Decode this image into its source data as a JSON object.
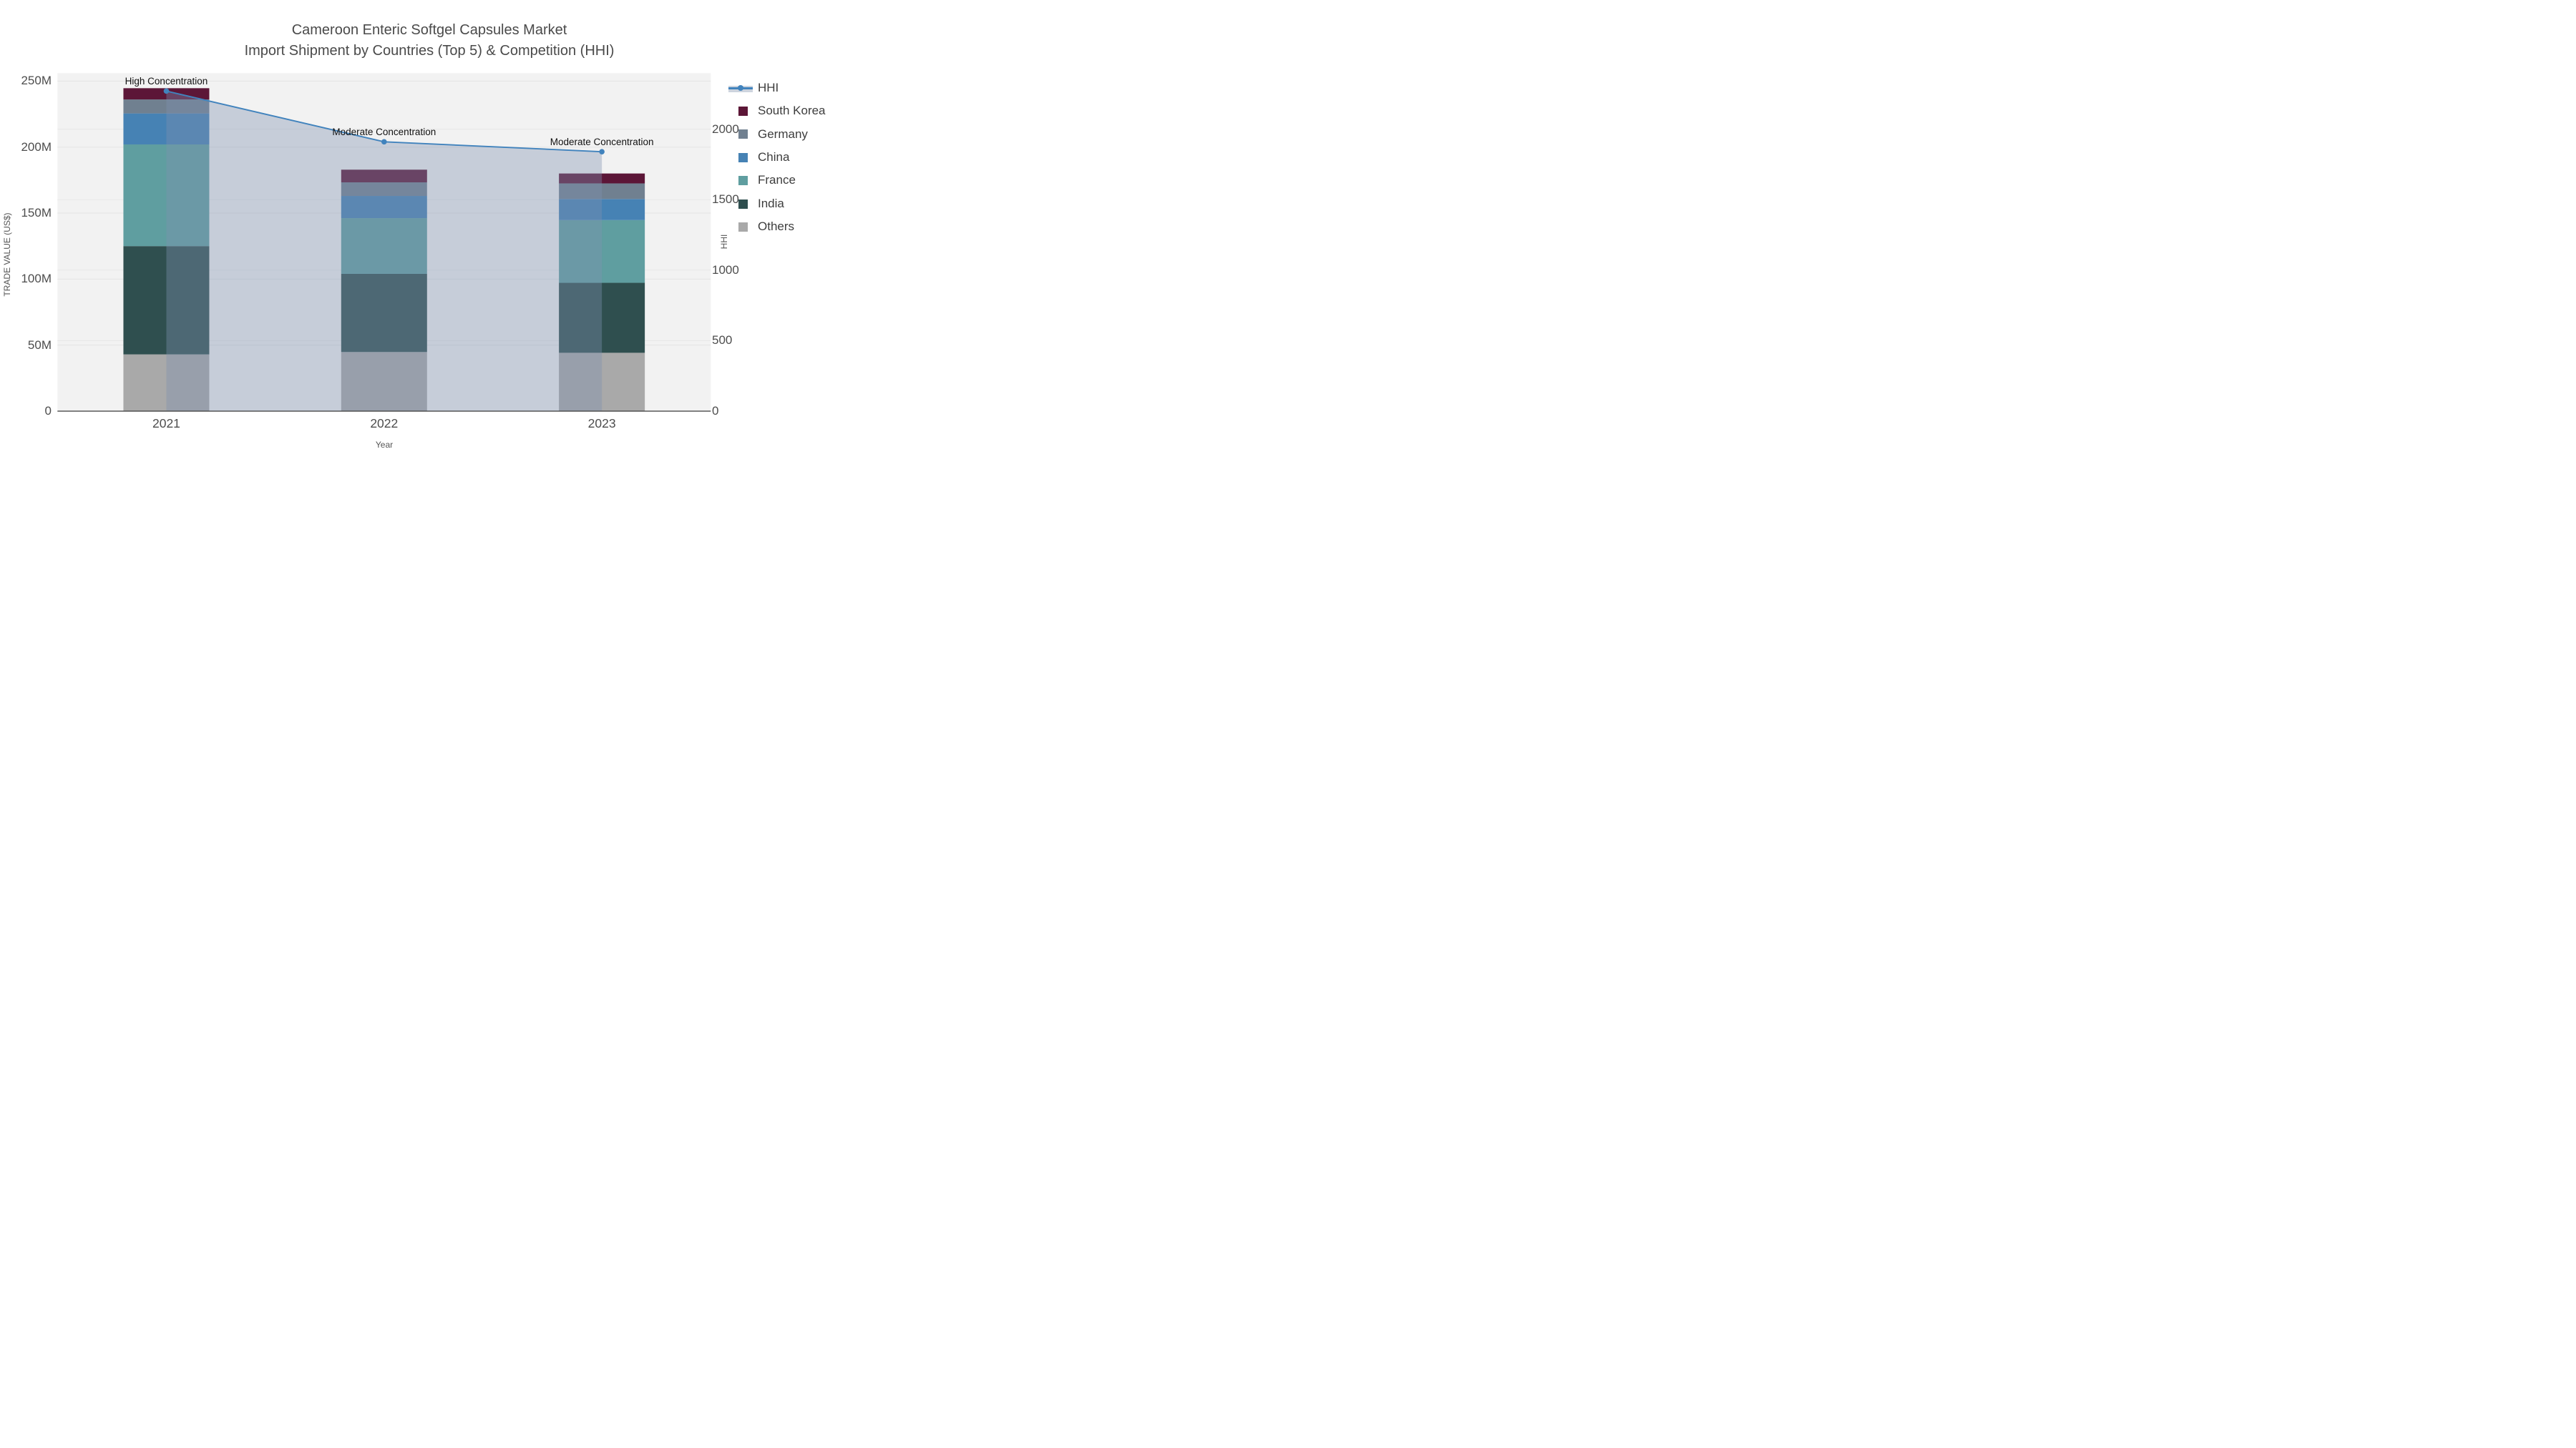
{
  "title": {
    "line1": "Cameroon Enteric Softgel Capsules Market",
    "line2": "Import Shipment by Countries (Top 5) & Competition (HHI)"
  },
  "axes": {
    "x_title": "Year",
    "y_left_title": "TRADE VALUE (US$)",
    "y_right_title": "HHI",
    "y_left_tick_labels": [
      "0",
      "50M",
      "100M",
      "150M",
      "200M",
      "250M"
    ],
    "y_left_tick_values": [
      0,
      50,
      100,
      150,
      200,
      250
    ],
    "y_right_tick_labels": [
      "0",
      "500",
      "1000",
      "1500",
      "2000"
    ],
    "y_right_tick_values": [
      0,
      500,
      1000,
      1500,
      2000
    ]
  },
  "legend": {
    "items": [
      {
        "label": "HHI",
        "type": "line",
        "color": "#4183bd"
      },
      {
        "label": "South Korea",
        "type": "swatch",
        "color": "#5c1637"
      },
      {
        "label": "Germany",
        "type": "swatch",
        "color": "#708090"
      },
      {
        "label": "China",
        "type": "swatch",
        "color": "#4682b4"
      },
      {
        "label": "France",
        "type": "swatch",
        "color": "#5f9ea0"
      },
      {
        "label": "India",
        "type": "swatch",
        "color": "#2f4f4f"
      },
      {
        "label": "Others",
        "type": "swatch",
        "color": "#a9a9a9"
      }
    ]
  },
  "colors": {
    "plot_background": "#f2f2f2",
    "grid_left": "#e4e4e4",
    "grid_right": "#e7e7e7",
    "axis_line": "#3a3a3a",
    "hhi_line": "#4183bd",
    "hhi_area_fill": "rgba(125,145,175,0.38)",
    "text": "#4d4d4d"
  },
  "chart_data": [
    {
      "type": "bar",
      "stacked": true,
      "title": "Cameroon Enteric Softgel Capsules Market — Import Shipment by Countries (Top 5)",
      "xlabel": "Year",
      "ylabel": "TRADE VALUE (US$)",
      "categories": [
        "2021",
        "2022",
        "2023"
      ],
      "unit": "millions US$",
      "ylim": [
        0,
        256
      ],
      "series": [
        {
          "name": "Others",
          "color": "#a9a9a9",
          "values": [
            43.0,
            44.8,
            44.2
          ]
        },
        {
          "name": "India",
          "color": "#2f4f4f",
          "values": [
            82.0,
            59.2,
            53.0
          ]
        },
        {
          "name": "France",
          "color": "#5f9ea0",
          "values": [
            77.0,
            42.2,
            47.5
          ]
        },
        {
          "name": "China",
          "color": "#4682b4",
          "values": [
            23.5,
            16.8,
            16.0
          ]
        },
        {
          "name": "Germany",
          "color": "#708090",
          "values": [
            10.6,
            10.3,
            11.8
          ]
        },
        {
          "name": "South Korea",
          "color": "#5c1637",
          "values": [
            8.5,
            9.6,
            7.5
          ]
        }
      ],
      "totals": [
        244.6,
        182.9,
        180.0
      ],
      "grid": true,
      "legend_position": "right"
    },
    {
      "type": "line",
      "name": "HHI",
      "x": [
        "2021",
        "2022",
        "2023"
      ],
      "values": [
        2270,
        1910,
        1840
      ],
      "area_fill_to_zero": true,
      "color": "#4183bd",
      "fill": "rgba(125,145,175,0.38)",
      "ylabel": "HHI",
      "ylim": [
        0,
        2397
      ],
      "annotations": [
        "High Concentration",
        "Moderate Concentration",
        "Moderate Concentration"
      ]
    }
  ]
}
